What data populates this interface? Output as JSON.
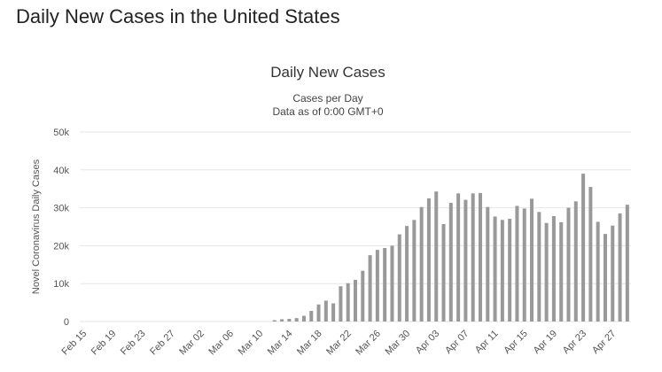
{
  "page_title": "Daily New Cases in the United States",
  "chart_data": {
    "type": "bar",
    "title": "Daily New Cases",
    "subtitle": [
      "Cases per Day",
      "Data as of 0:00 GMT+0"
    ],
    "y_axis_label": "Novel Coronavirus Daily Cases",
    "categories": [
      "Feb 15",
      null,
      null,
      null,
      "Feb 19",
      null,
      null,
      null,
      "Feb 23",
      null,
      null,
      null,
      "Feb 27",
      null,
      null,
      null,
      "Mar 02",
      null,
      null,
      null,
      "Mar 06",
      null,
      null,
      null,
      "Mar 10",
      null,
      null,
      null,
      "Mar 14",
      null,
      null,
      null,
      "Mar 18",
      null,
      null,
      null,
      "Mar 22",
      null,
      null,
      null,
      "Mar 26",
      null,
      null,
      null,
      "Mar 30",
      null,
      null,
      null,
      "Apr 03",
      null,
      null,
      null,
      "Apr 07",
      null,
      null,
      null,
      "Apr 11",
      null,
      null,
      null,
      "Apr 15",
      null,
      null,
      null,
      "Apr 19",
      null,
      null,
      null,
      "Apr 23",
      null,
      null,
      null,
      "Apr 27",
      null,
      null
    ],
    "values": [
      0,
      0,
      0,
      0,
      0,
      0,
      0,
      0,
      0,
      0,
      0,
      0,
      0,
      0,
      0,
      0,
      0,
      0,
      0,
      0,
      0,
      0,
      0,
      0,
      0,
      0,
      350,
      600,
      700,
      900,
      1500,
      2800,
      4500,
      5500,
      4800,
      9300,
      10100,
      11000,
      13400,
      17500,
      18900,
      19400,
      20000,
      23000,
      25200,
      26800,
      30200,
      32500,
      34300,
      25700,
      31300,
      33800,
      32100,
      33800,
      33900,
      30200,
      27700,
      26800,
      27100,
      30500,
      29800,
      32400,
      28900,
      26000,
      27800,
      26200,
      30000,
      31700,
      39000,
      35500,
      26300,
      23100,
      25300,
      28500,
      30800
    ],
    "color": "#999999",
    "ylim": [
      0,
      50000
    ],
    "yticks": [
      {
        "value": 0,
        "label": "0"
      },
      {
        "value": 10000,
        "label": "10k"
      },
      {
        "value": 20000,
        "label": "20k"
      },
      {
        "value": 30000,
        "label": "30k"
      },
      {
        "value": 40000,
        "label": "40k"
      },
      {
        "value": 50000,
        "label": "50k"
      }
    ],
    "grid": true
  }
}
